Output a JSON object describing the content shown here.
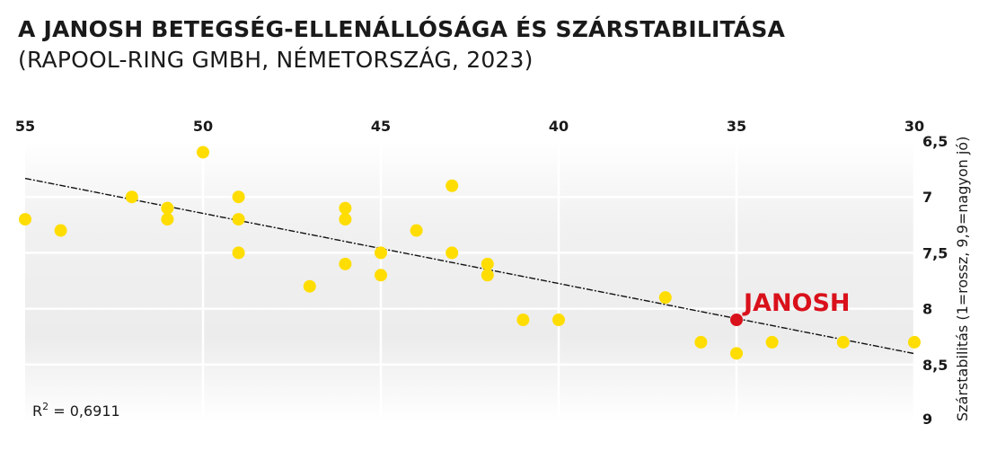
{
  "title": "A JANOSH BETEGSÉG-ELLENÁLLÓSÁGA ÉS SZÁRSTABILITÁSA",
  "subtitle": "(RAPOOL-RING GMBH, NÉMETORSZÁG, 2023)",
  "chart_data": {
    "type": "scatter",
    "title": "A JANOSH BETEGSÉG-ELLENÁLLÓSÁGA ÉS SZÁRSTABILITÁSA",
    "subtitle": "(RAPOOL-RING GMBH, NÉMETORSZÁG, 2023)",
    "xlabel": "",
    "ylabel": "Szárstabilitás (1=rossz, 9,9=nagyon jó)",
    "x_ticks": [
      "55",
      "50",
      "45",
      "40",
      "35",
      "30"
    ],
    "y_ticks": [
      "6,5",
      "7",
      "7,5",
      "8",
      "8,5",
      "9"
    ],
    "x_ticks_num": [
      55,
      50,
      45,
      40,
      35,
      30
    ],
    "y_ticks_num": [
      6.5,
      7,
      7.5,
      8,
      8.5,
      9
    ],
    "xlim": [
      55,
      30
    ],
    "ylim": [
      6.5,
      9
    ],
    "x_axis_position": "top",
    "y_axis_position": "right",
    "y_reversed": true,
    "grid": true,
    "point_color": "#ffdd00",
    "highlight_color": "#d9111b",
    "points": [
      {
        "x": 55,
        "y": 7.2
      },
      {
        "x": 54,
        "y": 7.3
      },
      {
        "x": 52,
        "y": 7.0
      },
      {
        "x": 51,
        "y": 7.1
      },
      {
        "x": 51,
        "y": 7.2
      },
      {
        "x": 50,
        "y": 6.6
      },
      {
        "x": 49,
        "y": 7.0
      },
      {
        "x": 49,
        "y": 7.2
      },
      {
        "x": 49,
        "y": 7.5
      },
      {
        "x": 47,
        "y": 7.8
      },
      {
        "x": 46,
        "y": 7.1
      },
      {
        "x": 46,
        "y": 7.2
      },
      {
        "x": 46,
        "y": 7.6
      },
      {
        "x": 45,
        "y": 7.5
      },
      {
        "x": 45,
        "y": 7.7
      },
      {
        "x": 44,
        "y": 7.3
      },
      {
        "x": 43,
        "y": 6.9
      },
      {
        "x": 43,
        "y": 7.5
      },
      {
        "x": 42,
        "y": 7.6
      },
      {
        "x": 42,
        "y": 7.7
      },
      {
        "x": 41,
        "y": 8.1
      },
      {
        "x": 40,
        "y": 8.1
      },
      {
        "x": 37,
        "y": 7.9
      },
      {
        "x": 36,
        "y": 8.3
      },
      {
        "x": 35,
        "y": 8.4
      },
      {
        "x": 34,
        "y": 8.3
      },
      {
        "x": 32,
        "y": 8.3
      },
      {
        "x": 30,
        "y": 8.3
      }
    ],
    "highlight": {
      "label": "JANOSH",
      "x": 35,
      "y": 8.1
    },
    "trendline": {
      "x": [
        55,
        30
      ],
      "y": [
        6.85,
        8.45
      ]
    },
    "r_squared": {
      "label": "R",
      "sup": "2",
      "text": " = 0,6911"
    }
  }
}
